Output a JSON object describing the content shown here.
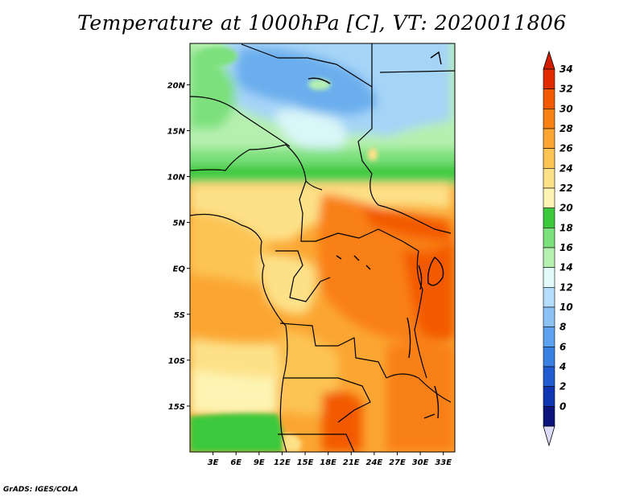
{
  "title": "Temperature at 1000hPa [C], VT: 2020011806",
  "credit": "GrADS: IGES/COLA",
  "map": {
    "lon_range": [
      0,
      34.5
    ],
    "lat_range": [
      -20,
      24.5
    ],
    "lat_ticks": [
      {
        "value": 20,
        "label": "20N"
      },
      {
        "value": 15,
        "label": "15N"
      },
      {
        "value": 10,
        "label": "10N"
      },
      {
        "value": 5,
        "label": "5N"
      },
      {
        "value": 0,
        "label": "EQ"
      },
      {
        "value": -5,
        "label": "5S"
      },
      {
        "value": -10,
        "label": "10S"
      },
      {
        "value": -15,
        "label": "15S"
      }
    ],
    "lon_ticks": [
      {
        "value": 3,
        "label": "3E"
      },
      {
        "value": 6,
        "label": "6E"
      },
      {
        "value": 9,
        "label": "9E"
      },
      {
        "value": 12,
        "label": "12E"
      },
      {
        "value": 15,
        "label": "15E"
      },
      {
        "value": 18,
        "label": "18E"
      },
      {
        "value": 21,
        "label": "21E"
      },
      {
        "value": 24,
        "label": "24E"
      },
      {
        "value": 27,
        "label": "27E"
      },
      {
        "value": 30,
        "label": "30E"
      },
      {
        "value": 33,
        "label": "33E"
      }
    ]
  },
  "colorbar": {
    "labels": [
      "34",
      "32",
      "30",
      "28",
      "26",
      "24",
      "22",
      "20",
      "18",
      "16",
      "14",
      "12",
      "10",
      "8",
      "6",
      "4",
      "2",
      "0"
    ],
    "colors": [
      "#e02b00",
      "#f35a00",
      "#f98012",
      "#fba633",
      "#fcc453",
      "#fde188",
      "#fdf4b3",
      "#3cc93c",
      "#7ce07c",
      "#b6f0b0",
      "#e2fafa",
      "#b6dcfb",
      "#8cc3f7",
      "#5da2ee",
      "#3a80e2",
      "#215bd2",
      "#1035b2",
      "#0a147c"
    ],
    "top_cap": "#d21e00",
    "bottom_cap": "#dcdcf8"
  },
  "field_colors": {
    "desert_blue": "#6aaeee",
    "light_blue": "#a5d4f7",
    "pale_cyan": "#d9f6f8",
    "pale_green": "#b6f0b0",
    "mid_green": "#7ce07c",
    "green": "#3cc93c",
    "pale_yellow": "#fdf4b3",
    "yellow": "#fde188",
    "light_orange": "#fcc453",
    "orange": "#fba633",
    "dark_orange": "#f98012",
    "red_orange": "#f35a00"
  }
}
